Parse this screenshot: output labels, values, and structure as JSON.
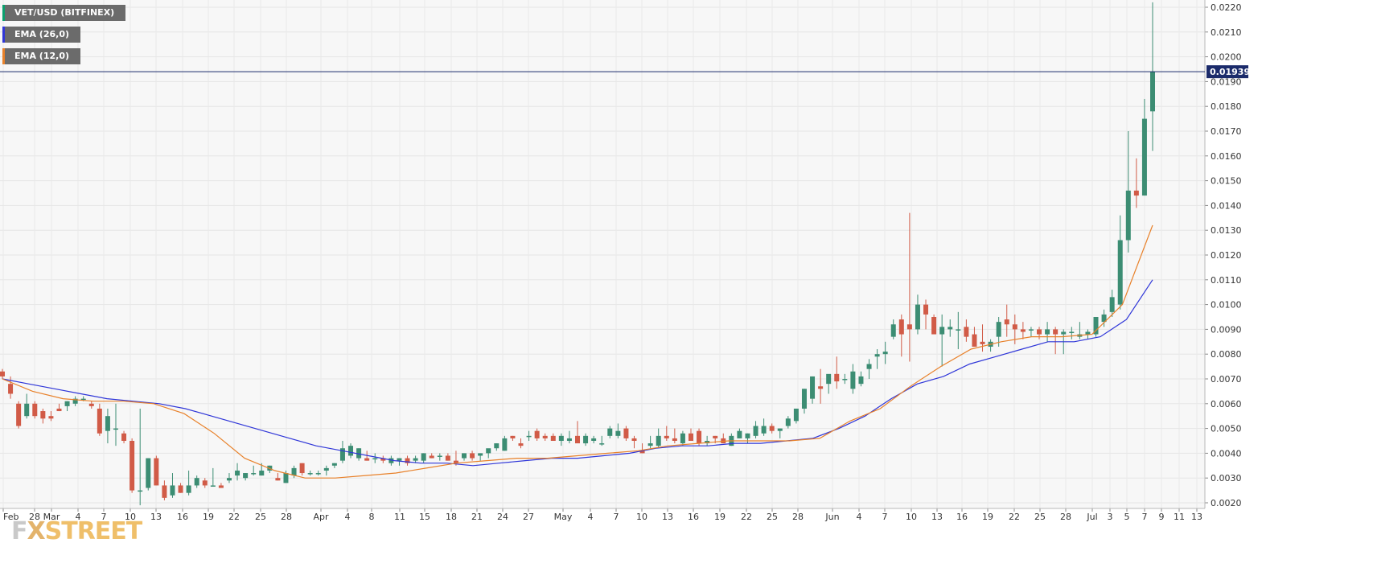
{
  "chart_data": {
    "type": "candlestick",
    "title": "VET/USD (BITFINEX)",
    "price_marker": "0.019398",
    "y_ticks": [
      "0.0220",
      "0.0210",
      "0.0200",
      "0.0190",
      "0.0180",
      "0.0170",
      "0.0160",
      "0.0150",
      "0.0140",
      "0.0130",
      "0.0120",
      "0.0110",
      "0.0100",
      "0.0090",
      "0.0080",
      "0.0070",
      "0.0060",
      "0.0050",
      "0.0040",
      "0.0030",
      "0.0020"
    ],
    "x_ticks": [
      "Feb",
      "28",
      "Mar",
      "4",
      "7",
      "10",
      "13",
      "16",
      "19",
      "22",
      "25",
      "28",
      "Apr",
      "4",
      "8",
      "11",
      "15",
      "18",
      "21",
      "24",
      "27",
      "May",
      "4",
      "7",
      "10",
      "13",
      "16",
      "19",
      "22",
      "25",
      "28",
      "Jun",
      "4",
      "7",
      "10",
      "13",
      "16",
      "19",
      "22",
      "25",
      "28",
      "Jul",
      "3",
      "5",
      "7",
      "9",
      "11",
      "13"
    ],
    "ylim": [
      0.0019,
      0.0222
    ],
    "grid": true,
    "legend_position": "top-left",
    "colors": {
      "up": "#3c8d73",
      "down": "#d15b47",
      "ema26": "#2f36d8",
      "ema12": "#e8812a",
      "priceline": "#1b2b6b"
    },
    "series": [
      {
        "name": "EMA (26,0)",
        "type": "line",
        "values": [
          0.007,
          0.0068,
          0.0066,
          0.0064,
          0.0062,
          0.0061,
          0.006,
          0.0058,
          0.0055,
          0.0052,
          0.0049,
          0.0046,
          0.0043,
          0.0041,
          0.0039,
          0.0037,
          0.0036,
          0.0036,
          0.0035,
          0.0036,
          0.0037,
          0.0038,
          0.0038,
          0.0039,
          0.004,
          0.0042,
          0.0043,
          0.0043,
          0.0044,
          0.0044,
          0.0045,
          0.0046,
          0.005,
          0.0055,
          0.0062,
          0.0068,
          0.0071,
          0.0076,
          0.0079,
          0.0082,
          0.0085,
          0.0085,
          0.0087,
          0.0094,
          0.011
        ]
      },
      {
        "name": "EMA (12,0)",
        "type": "line",
        "values": [
          0.007,
          0.0065,
          0.0062,
          0.0061,
          0.0061,
          0.006,
          0.0056,
          0.0048,
          0.0038,
          0.0033,
          0.003,
          0.003,
          0.0031,
          0.0032,
          0.0034,
          0.0036,
          0.0037,
          0.0038,
          0.0038,
          0.0039,
          0.004,
          0.0041,
          0.0043,
          0.0044,
          0.0045,
          0.0045,
          0.0045,
          0.0046,
          0.0053,
          0.0058,
          0.0067,
          0.0075,
          0.0082,
          0.0085,
          0.0087,
          0.0087,
          0.0088,
          0.01,
          0.0132
        ]
      }
    ],
    "candles": [
      {
        "o": 0.0073,
        "h": 0.0074,
        "l": 0.007,
        "c": 0.0071
      },
      {
        "o": 0.0068,
        "h": 0.0071,
        "l": 0.0062,
        "c": 0.0064
      },
      {
        "o": 0.006,
        "h": 0.0061,
        "l": 0.005,
        "c": 0.0051
      },
      {
        "o": 0.0055,
        "h": 0.0064,
        "l": 0.0054,
        "c": 0.006
      },
      {
        "o": 0.006,
        "h": 0.0061,
        "l": 0.0054,
        "c": 0.0055
      },
      {
        "o": 0.0057,
        "h": 0.0058,
        "l": 0.0052,
        "c": 0.0054
      },
      {
        "o": 0.0055,
        "h": 0.0057,
        "l": 0.0053,
        "c": 0.0054
      },
      {
        "o": 0.0058,
        "h": 0.006,
        "l": 0.0057,
        "c": 0.0057
      },
      {
        "o": 0.0059,
        "h": 0.0061,
        "l": 0.0057,
        "c": 0.0061
      },
      {
        "o": 0.006,
        "h": 0.0063,
        "l": 0.0059,
        "c": 0.0062
      },
      {
        "o": 0.0062,
        "h": 0.0063,
        "l": 0.0061,
        "c": 0.0062
      },
      {
        "o": 0.006,
        "h": 0.0061,
        "l": 0.0058,
        "c": 0.0059
      },
      {
        "o": 0.0058,
        "h": 0.006,
        "l": 0.0047,
        "c": 0.0048
      },
      {
        "o": 0.0049,
        "h": 0.0058,
        "l": 0.0044,
        "c": 0.0055
      },
      {
        "o": 0.005,
        "h": 0.006,
        "l": 0.0043,
        "c": 0.005
      },
      {
        "o": 0.0048,
        "h": 0.0049,
        "l": 0.0044,
        "c": 0.0045
      },
      {
        "o": 0.0045,
        "h": 0.0046,
        "l": 0.0024,
        "c": 0.0025
      },
      {
        "o": 0.0025,
        "h": 0.0058,
        "l": 0.0019,
        "c": 0.0025
      },
      {
        "o": 0.0026,
        "h": 0.0038,
        "l": 0.0025,
        "c": 0.0038
      },
      {
        "o": 0.0038,
        "h": 0.0039,
        "l": 0.0027,
        "c": 0.0027
      },
      {
        "o": 0.0027,
        "h": 0.0029,
        "l": 0.0021,
        "c": 0.0022
      },
      {
        "o": 0.0023,
        "h": 0.0032,
        "l": 0.0022,
        "c": 0.0027
      },
      {
        "o": 0.0027,
        "h": 0.0028,
        "l": 0.0024,
        "c": 0.0024
      },
      {
        "o": 0.0024,
        "h": 0.0033,
        "l": 0.0023,
        "c": 0.0027
      },
      {
        "o": 0.0027,
        "h": 0.0031,
        "l": 0.0026,
        "c": 0.003
      },
      {
        "o": 0.0029,
        "h": 0.003,
        "l": 0.0026,
        "c": 0.0027
      },
      {
        "o": 0.0027,
        "h": 0.0034,
        "l": 0.0027,
        "c": 0.0027
      },
      {
        "o": 0.0027,
        "h": 0.0028,
        "l": 0.0026,
        "c": 0.0026
      },
      {
        "o": 0.0029,
        "h": 0.0032,
        "l": 0.0028,
        "c": 0.003
      },
      {
        "o": 0.0031,
        "h": 0.0036,
        "l": 0.0029,
        "c": 0.0033
      },
      {
        "o": 0.003,
        "h": 0.0032,
        "l": 0.0029,
        "c": 0.0032
      },
      {
        "o": 0.0032,
        "h": 0.0035,
        "l": 0.0031,
        "c": 0.0032
      },
      {
        "o": 0.0031,
        "h": 0.0036,
        "l": 0.0031,
        "c": 0.0033
      },
      {
        "o": 0.0033,
        "h": 0.0035,
        "l": 0.0032,
        "c": 0.0035
      },
      {
        "o": 0.003,
        "h": 0.0032,
        "l": 0.0029,
        "c": 0.0029
      },
      {
        "o": 0.0028,
        "h": 0.0033,
        "l": 0.0028,
        "c": 0.0032
      },
      {
        "o": 0.0031,
        "h": 0.0035,
        "l": 0.003,
        "c": 0.0034
      },
      {
        "o": 0.0036,
        "h": 0.0036,
        "l": 0.0031,
        "c": 0.0032
      },
      {
        "o": 0.0032,
        "h": 0.0033,
        "l": 0.0031,
        "c": 0.0032
      },
      {
        "o": 0.0032,
        "h": 0.0033,
        "l": 0.0031,
        "c": 0.0032
      },
      {
        "o": 0.0033,
        "h": 0.0035,
        "l": 0.0031,
        "c": 0.0034
      },
      {
        "o": 0.0035,
        "h": 0.0036,
        "l": 0.0034,
        "c": 0.0036
      },
      {
        "o": 0.0037,
        "h": 0.0045,
        "l": 0.0036,
        "c": 0.0042
      },
      {
        "o": 0.0039,
        "h": 0.0044,
        "l": 0.0038,
        "c": 0.0043
      },
      {
        "o": 0.0038,
        "h": 0.0042,
        "l": 0.0037,
        "c": 0.0042
      },
      {
        "o": 0.0038,
        "h": 0.0041,
        "l": 0.0037,
        "c": 0.0037
      },
      {
        "o": 0.0038,
        "h": 0.004,
        "l": 0.0036,
        "c": 0.0038
      },
      {
        "o": 0.0038,
        "h": 0.0039,
        "l": 0.0036,
        "c": 0.0037
      },
      {
        "o": 0.0036,
        "h": 0.0039,
        "l": 0.0035,
        "c": 0.0038
      },
      {
        "o": 0.0037,
        "h": 0.0038,
        "l": 0.0035,
        "c": 0.0038
      },
      {
        "o": 0.0038,
        "h": 0.0039,
        "l": 0.0035,
        "c": 0.0036
      },
      {
        "o": 0.0037,
        "h": 0.0039,
        "l": 0.0036,
        "c": 0.0038
      },
      {
        "o": 0.0037,
        "h": 0.004,
        "l": 0.0036,
        "c": 0.004
      },
      {
        "o": 0.0039,
        "h": 0.004,
        "l": 0.0038,
        "c": 0.0038
      },
      {
        "o": 0.0039,
        "h": 0.004,
        "l": 0.0037,
        "c": 0.0039
      },
      {
        "o": 0.0039,
        "h": 0.004,
        "l": 0.0037,
        "c": 0.0037
      },
      {
        "o": 0.0037,
        "h": 0.0041,
        "l": 0.0035,
        "c": 0.0036
      },
      {
        "o": 0.0038,
        "h": 0.004,
        "l": 0.0037,
        "c": 0.004
      },
      {
        "o": 0.004,
        "h": 0.0041,
        "l": 0.0037,
        "c": 0.0038
      },
      {
        "o": 0.0039,
        "h": 0.004,
        "l": 0.0037,
        "c": 0.004
      },
      {
        "o": 0.004,
        "h": 0.0041,
        "l": 0.0038,
        "c": 0.0042
      },
      {
        "o": 0.0042,
        "h": 0.0044,
        "l": 0.0041,
        "c": 0.0044
      },
      {
        "o": 0.0041,
        "h": 0.0047,
        "l": 0.0041,
        "c": 0.0046
      },
      {
        "o": 0.0047,
        "h": 0.0047,
        "l": 0.0045,
        "c": 0.0046
      },
      {
        "o": 0.0044,
        "h": 0.0046,
        "l": 0.0042,
        "c": 0.0043
      },
      {
        "o": 0.0047,
        "h": 0.0049,
        "l": 0.0045,
        "c": 0.0047
      },
      {
        "o": 0.0049,
        "h": 0.005,
        "l": 0.0045,
        "c": 0.0046
      },
      {
        "o": 0.0047,
        "h": 0.0048,
        "l": 0.0045,
        "c": 0.0046
      },
      {
        "o": 0.0047,
        "h": 0.0048,
        "l": 0.0045,
        "c": 0.0045
      },
      {
        "o": 0.0045,
        "h": 0.0048,
        "l": 0.0043,
        "c": 0.0047
      },
      {
        "o": 0.0045,
        "h": 0.0049,
        "l": 0.0044,
        "c": 0.0046
      },
      {
        "o": 0.0047,
        "h": 0.0053,
        "l": 0.0045,
        "c": 0.0044
      },
      {
        "o": 0.0044,
        "h": 0.0048,
        "l": 0.0043,
        "c": 0.0047
      },
      {
        "o": 0.0045,
        "h": 0.0047,
        "l": 0.0044,
        "c": 0.0046
      },
      {
        "o": 0.0044,
        "h": 0.0047,
        "l": 0.0043,
        "c": 0.0044
      },
      {
        "o": 0.0047,
        "h": 0.0051,
        "l": 0.0046,
        "c": 0.005
      },
      {
        "o": 0.0047,
        "h": 0.0052,
        "l": 0.0046,
        "c": 0.0049
      },
      {
        "o": 0.005,
        "h": 0.0051,
        "l": 0.0045,
        "c": 0.0046
      },
      {
        "o": 0.0046,
        "h": 0.0047,
        "l": 0.0042,
        "c": 0.0045
      },
      {
        "o": 0.0041,
        "h": 0.0044,
        "l": 0.004,
        "c": 0.004
      },
      {
        "o": 0.0043,
        "h": 0.0047,
        "l": 0.0042,
        "c": 0.0044
      },
      {
        "o": 0.0043,
        "h": 0.005,
        "l": 0.0042,
        "c": 0.0047
      },
      {
        "o": 0.0047,
        "h": 0.0051,
        "l": 0.0045,
        "c": 0.0046
      },
      {
        "o": 0.0046,
        "h": 0.005,
        "l": 0.0044,
        "c": 0.0045
      },
      {
        "o": 0.0044,
        "h": 0.0049,
        "l": 0.0043,
        "c": 0.0048
      },
      {
        "o": 0.0048,
        "h": 0.005,
        "l": 0.0045,
        "c": 0.0045
      },
      {
        "o": 0.0049,
        "h": 0.005,
        "l": 0.0043,
        "c": 0.0044
      },
      {
        "o": 0.0044,
        "h": 0.0047,
        "l": 0.0043,
        "c": 0.0045
      },
      {
        "o": 0.0047,
        "h": 0.0047,
        "l": 0.0044,
        "c": 0.0046
      },
      {
        "o": 0.0046,
        "h": 0.0048,
        "l": 0.0045,
        "c": 0.0044
      },
      {
        "o": 0.0043,
        "h": 0.0048,
        "l": 0.0043,
        "c": 0.0047
      },
      {
        "o": 0.0046,
        "h": 0.005,
        "l": 0.0046,
        "c": 0.0049
      },
      {
        "o": 0.0046,
        "h": 0.0048,
        "l": 0.0044,
        "c": 0.0048
      },
      {
        "o": 0.0047,
        "h": 0.0053,
        "l": 0.0046,
        "c": 0.0051
      },
      {
        "o": 0.0048,
        "h": 0.0054,
        "l": 0.0047,
        "c": 0.0051
      },
      {
        "o": 0.0051,
        "h": 0.0052,
        "l": 0.0048,
        "c": 0.0049
      },
      {
        "o": 0.0049,
        "h": 0.005,
        "l": 0.0046,
        "c": 0.005
      },
      {
        "o": 0.0051,
        "h": 0.0055,
        "l": 0.005,
        "c": 0.0054
      },
      {
        "o": 0.0053,
        "h": 0.0058,
        "l": 0.0052,
        "c": 0.0058
      },
      {
        "o": 0.0058,
        "h": 0.0066,
        "l": 0.0056,
        "c": 0.0066
      },
      {
        "o": 0.0062,
        "h": 0.0071,
        "l": 0.006,
        "c": 0.0071
      },
      {
        "o": 0.0067,
        "h": 0.0074,
        "l": 0.006,
        "c": 0.0066
      },
      {
        "o": 0.0068,
        "h": 0.007,
        "l": 0.0064,
        "c": 0.0072
      },
      {
        "o": 0.0072,
        "h": 0.0079,
        "l": 0.0066,
        "c": 0.0069
      },
      {
        "o": 0.007,
        "h": 0.0072,
        "l": 0.0068,
        "c": 0.007
      },
      {
        "o": 0.0066,
        "h": 0.0076,
        "l": 0.0064,
        "c": 0.0073
      },
      {
        "o": 0.0068,
        "h": 0.0073,
        "l": 0.0067,
        "c": 0.0071
      },
      {
        "o": 0.0074,
        "h": 0.0078,
        "l": 0.007,
        "c": 0.0076
      },
      {
        "o": 0.0079,
        "h": 0.0082,
        "l": 0.0074,
        "c": 0.008
      },
      {
        "o": 0.008,
        "h": 0.0085,
        "l": 0.0076,
        "c": 0.0081
      },
      {
        "o": 0.0087,
        "h": 0.0094,
        "l": 0.0086,
        "c": 0.0092
      },
      {
        "o": 0.0094,
        "h": 0.0096,
        "l": 0.0079,
        "c": 0.0088
      },
      {
        "o": 0.0092,
        "h": 0.0137,
        "l": 0.0077,
        "c": 0.009
      },
      {
        "o": 0.009,
        "h": 0.0104,
        "l": 0.0088,
        "c": 0.01
      },
      {
        "o": 0.01,
        "h": 0.0102,
        "l": 0.009,
        "c": 0.0096
      },
      {
        "o": 0.0095,
        "h": 0.0096,
        "l": 0.009,
        "c": 0.0088
      },
      {
        "o": 0.0088,
        "h": 0.0096,
        "l": 0.0075,
        "c": 0.0091
      },
      {
        "o": 0.009,
        "h": 0.0094,
        "l": 0.0087,
        "c": 0.0091
      },
      {
        "o": 0.009,
        "h": 0.0097,
        "l": 0.0082,
        "c": 0.009
      },
      {
        "o": 0.0091,
        "h": 0.0094,
        "l": 0.0085,
        "c": 0.0087
      },
      {
        "o": 0.0088,
        "h": 0.0091,
        "l": 0.0083,
        "c": 0.0083
      },
      {
        "o": 0.0085,
        "h": 0.0092,
        "l": 0.0081,
        "c": 0.0084
      },
      {
        "o": 0.0083,
        "h": 0.0086,
        "l": 0.0081,
        "c": 0.0085
      },
      {
        "o": 0.0087,
        "h": 0.0095,
        "l": 0.0083,
        "c": 0.0093
      },
      {
        "o": 0.0094,
        "h": 0.01,
        "l": 0.0087,
        "c": 0.0092
      },
      {
        "o": 0.0092,
        "h": 0.0096,
        "l": 0.0084,
        "c": 0.009
      },
      {
        "o": 0.009,
        "h": 0.0093,
        "l": 0.0086,
        "c": 0.0089
      },
      {
        "o": 0.009,
        "h": 0.0091,
        "l": 0.0087,
        "c": 0.009
      },
      {
        "o": 0.009,
        "h": 0.0091,
        "l": 0.0086,
        "c": 0.0088
      },
      {
        "o": 0.0088,
        "h": 0.0093,
        "l": 0.0085,
        "c": 0.009
      },
      {
        "o": 0.009,
        "h": 0.0091,
        "l": 0.008,
        "c": 0.0088
      },
      {
        "o": 0.0088,
        "h": 0.009,
        "l": 0.008,
        "c": 0.0089
      },
      {
        "o": 0.0089,
        "h": 0.0091,
        "l": 0.0086,
        "c": 0.0089
      },
      {
        "o": 0.0087,
        "h": 0.0093,
        "l": 0.0086,
        "c": 0.0088
      },
      {
        "o": 0.0088,
        "h": 0.009,
        "l": 0.0086,
        "c": 0.0089
      },
      {
        "o": 0.0088,
        "h": 0.0095,
        "l": 0.0087,
        "c": 0.0095
      },
      {
        "o": 0.0093,
        "h": 0.0098,
        "l": 0.0091,
        "c": 0.0096
      },
      {
        "o": 0.0097,
        "h": 0.0106,
        "l": 0.0095,
        "c": 0.0103
      },
      {
        "o": 0.01,
        "h": 0.0136,
        "l": 0.0098,
        "c": 0.0126
      },
      {
        "o": 0.0126,
        "h": 0.017,
        "l": 0.0121,
        "c": 0.0146
      },
      {
        "o": 0.0146,
        "h": 0.0159,
        "l": 0.0139,
        "c": 0.0144
      },
      {
        "o": 0.0144,
        "h": 0.0183,
        "l": 0.0144,
        "c": 0.0175
      },
      {
        "o": 0.0178,
        "h": 0.0222,
        "l": 0.0162,
        "c": 0.0194
      }
    ]
  },
  "legend": {
    "title": "VET/USD (BITFINEX)",
    "ema26": "EMA (26,0)",
    "ema12": "EMA (12,0)"
  },
  "watermark": {
    "fx": "F",
    "x": "X",
    "street": "STREET"
  }
}
